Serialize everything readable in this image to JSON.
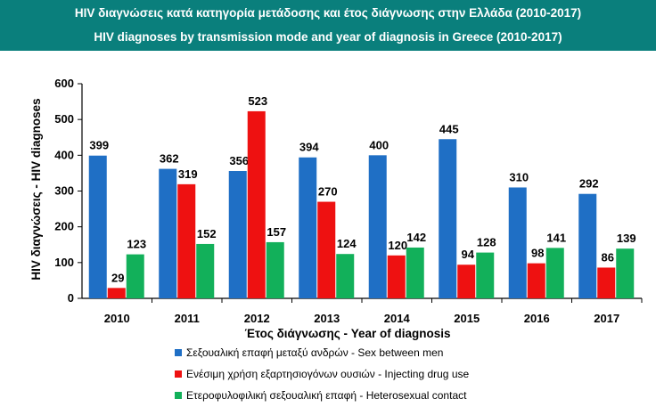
{
  "header": {
    "title_greek": "HIV διαγνώσεις κατά κατηγορία μετάδοσης και έτος διάγνωσης στην Ελλάδα (2010-2017)",
    "title_english": "HIV diagnoses by transmission mode and year of diagnosis in Greece (2010-2017)",
    "background_color": "#0a7f7c"
  },
  "chart_data": {
    "type": "bar",
    "xlabel": "Έτος διάγνωσης - Year of diagnosis",
    "ylabel": "HIV διαγνώσεις - HIV diagnoses",
    "ylim": [
      0,
      600
    ],
    "yticks": [
      "0",
      "100",
      "200",
      "300",
      "400",
      "500",
      "600"
    ],
    "categories": [
      "2010",
      "2011",
      "2012",
      "2013",
      "2014",
      "2015",
      "2016",
      "2017"
    ],
    "grid": false,
    "legend_position": "bottom",
    "series": [
      {
        "name": "Σεξουαλική επαφή μεταξύ ανδρών - Sex between men",
        "color": "#1f6fc5",
        "values": [
          399,
          362,
          356,
          394,
          400,
          445,
          310,
          292
        ]
      },
      {
        "name": "Ενέσιμη χρήση εξαρτησιογόνων ουσιών - Injecting drug use",
        "color": "#ee1111",
        "values": [
          29,
          319,
          523,
          270,
          120,
          94,
          98,
          86
        ]
      },
      {
        "name": "Ετεροφυλοφιλική σεξουαλική επαφή - Heterosexual contact",
        "color": "#12b05a",
        "values": [
          123,
          152,
          157,
          124,
          142,
          128,
          141,
          139
        ]
      }
    ]
  }
}
